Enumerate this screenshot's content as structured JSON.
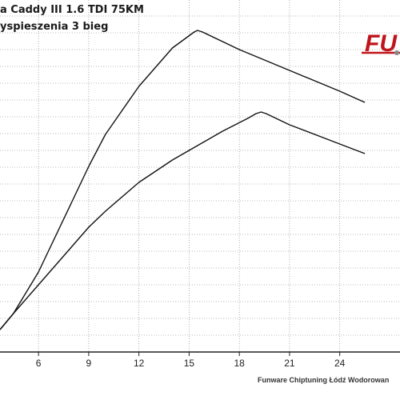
{
  "header": {
    "title": "a Caddy III 1.6 TDI 75KM",
    "subtitle": "yspieszenia 3 bieg"
  },
  "logo": {
    "text": "FU",
    "color": "#c0141b"
  },
  "footer": {
    "text": "Funware Chiptuning Łódź Wodorowan"
  },
  "chart_data": {
    "type": "line",
    "title": "a Caddy III 1.6 TDI 75KM",
    "subtitle": "yspieszenia 3 bieg",
    "xlabel": "",
    "ylabel": "",
    "x_ticks": [
      6,
      9,
      12,
      15,
      18,
      21,
      24
    ],
    "xlim": [
      3.7,
      27.6
    ],
    "grid": true,
    "series": [
      {
        "x": [
          3.7,
          4.5,
          6,
          8,
          9,
          10,
          12,
          14,
          15.3,
          15.5,
          15.8,
          18,
          21,
          24,
          25.5
        ],
        "y": [
          0.7,
          1.2,
          2.5,
          4.7,
          5.8,
          6.8,
          8.3,
          9.5,
          10.0,
          10.05,
          10.0,
          9.45,
          8.8,
          8.15,
          7.8
        ]
      },
      {
        "x": [
          3.7,
          4.5,
          6,
          8,
          9,
          10,
          12,
          14,
          15,
          17,
          18.5,
          19,
          19.3,
          19.6,
          21,
          24,
          25.5
        ],
        "y": [
          0.7,
          1.2,
          2.1,
          3.3,
          3.9,
          4.4,
          5.3,
          6.0,
          6.3,
          6.9,
          7.3,
          7.45,
          7.5,
          7.45,
          7.1,
          6.5,
          6.2
        ]
      }
    ],
    "colors": {
      "line": "#111111",
      "grid": "#777777",
      "background": "#ffffff",
      "logo": "#c0141b"
    }
  }
}
